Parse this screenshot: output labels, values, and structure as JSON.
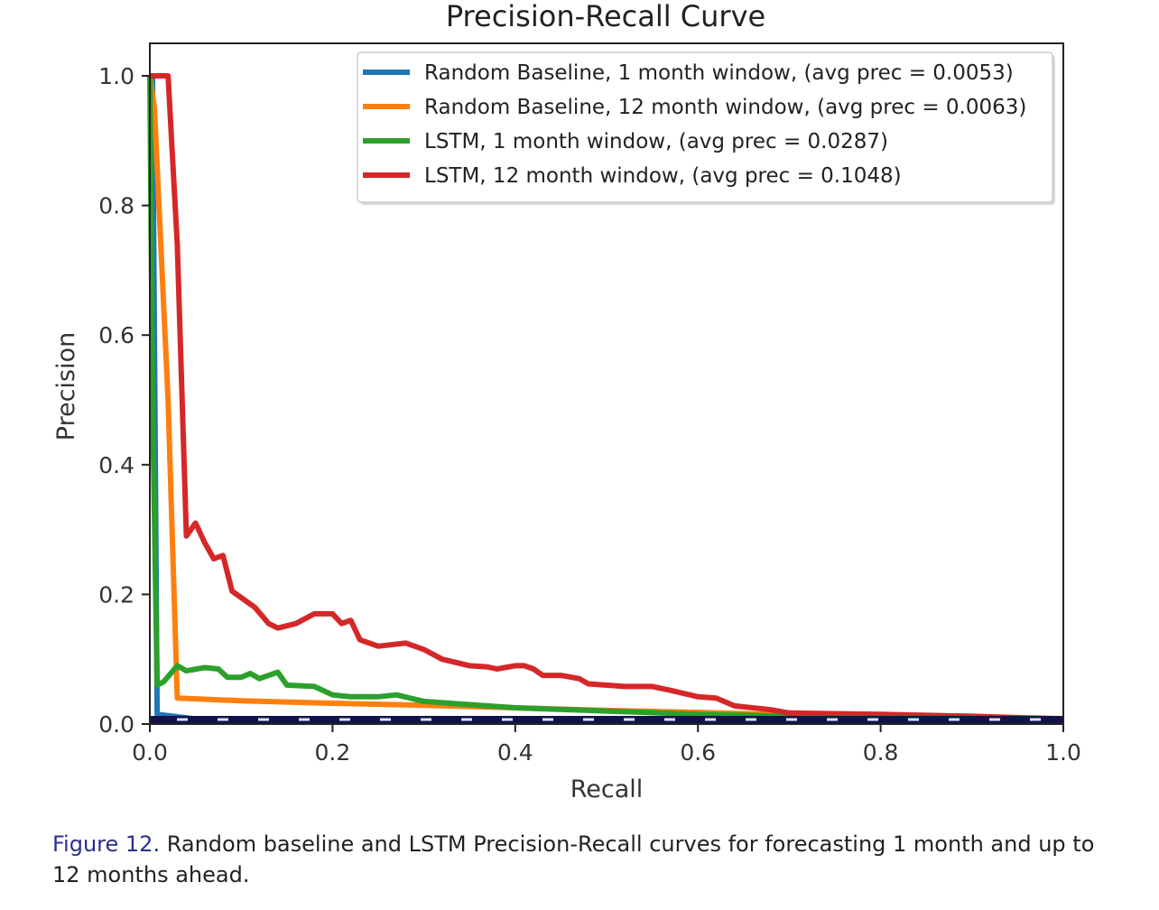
{
  "chart_data": {
    "type": "line",
    "title": "Precision-Recall Curve",
    "xlabel": "Recall",
    "ylabel": "Precision",
    "xlim": [
      0.0,
      1.0
    ],
    "ylim": [
      0.0,
      1.0
    ],
    "xticks": [
      "0.0",
      "0.2",
      "0.4",
      "0.6",
      "0.8",
      "1.0"
    ],
    "yticks": [
      "0.0",
      "0.2",
      "0.4",
      "0.6",
      "0.8",
      "1.0"
    ],
    "grid": false,
    "legend_position": "top-right",
    "baseline": {
      "style": "dashed",
      "y": 0.007
    },
    "series": [
      {
        "name": "Random Baseline, 1 month window, (avg prec = 0.0053)",
        "color": "#1f77b4",
        "points": [
          [
            0.0,
            1.0
          ],
          [
            0.003,
            1.0
          ],
          [
            0.008,
            0.015
          ],
          [
            0.05,
            0.008
          ],
          [
            1.0,
            0.005
          ]
        ]
      },
      {
        "name": "Random Baseline, 12 month window, (avg prec = 0.0063)",
        "color": "#ff7f0e",
        "points": [
          [
            0.0,
            1.0
          ],
          [
            0.005,
            0.95
          ],
          [
            0.02,
            0.5
          ],
          [
            0.03,
            0.04
          ],
          [
            0.1,
            0.036
          ],
          [
            0.2,
            0.032
          ],
          [
            0.3,
            0.029
          ],
          [
            0.4,
            0.025
          ],
          [
            0.5,
            0.021
          ],
          [
            0.6,
            0.018
          ],
          [
            0.7,
            0.014
          ],
          [
            0.8,
            0.011
          ],
          [
            0.9,
            0.009
          ],
          [
            1.0,
            0.007
          ]
        ]
      },
      {
        "name": "LSTM, 1 month window, (avg prec = 0.0287)",
        "color": "#2ca02c",
        "points": [
          [
            0.0,
            1.0
          ],
          [
            0.003,
            0.5
          ],
          [
            0.008,
            0.06
          ],
          [
            0.015,
            0.065
          ],
          [
            0.03,
            0.09
          ],
          [
            0.04,
            0.082
          ],
          [
            0.06,
            0.087
          ],
          [
            0.075,
            0.085
          ],
          [
            0.085,
            0.072
          ],
          [
            0.1,
            0.072
          ],
          [
            0.11,
            0.078
          ],
          [
            0.12,
            0.07
          ],
          [
            0.14,
            0.08
          ],
          [
            0.15,
            0.06
          ],
          [
            0.18,
            0.058
          ],
          [
            0.2,
            0.045
          ],
          [
            0.22,
            0.042
          ],
          [
            0.25,
            0.042
          ],
          [
            0.27,
            0.045
          ],
          [
            0.3,
            0.035
          ],
          [
            0.35,
            0.03
          ],
          [
            0.4,
            0.025
          ],
          [
            0.5,
            0.02
          ],
          [
            0.6,
            0.015
          ],
          [
            0.7,
            0.012
          ],
          [
            0.8,
            0.01
          ],
          [
            1.0,
            0.008
          ]
        ]
      },
      {
        "name": "LSTM, 12 month window, (avg prec = 0.1048)",
        "color": "#d62728",
        "points": [
          [
            0.0,
            1.0
          ],
          [
            0.02,
            1.0
          ],
          [
            0.03,
            0.74
          ],
          [
            0.04,
            0.29
          ],
          [
            0.05,
            0.31
          ],
          [
            0.06,
            0.28
          ],
          [
            0.07,
            0.255
          ],
          [
            0.08,
            0.26
          ],
          [
            0.09,
            0.205
          ],
          [
            0.1,
            0.195
          ],
          [
            0.115,
            0.18
          ],
          [
            0.13,
            0.155
          ],
          [
            0.14,
            0.148
          ],
          [
            0.16,
            0.155
          ],
          [
            0.18,
            0.17
          ],
          [
            0.2,
            0.17
          ],
          [
            0.21,
            0.155
          ],
          [
            0.22,
            0.16
          ],
          [
            0.23,
            0.13
          ],
          [
            0.25,
            0.12
          ],
          [
            0.28,
            0.125
          ],
          [
            0.3,
            0.115
          ],
          [
            0.32,
            0.1
          ],
          [
            0.35,
            0.09
          ],
          [
            0.37,
            0.088
          ],
          [
            0.38,
            0.085
          ],
          [
            0.4,
            0.09
          ],
          [
            0.41,
            0.09
          ],
          [
            0.42,
            0.085
          ],
          [
            0.43,
            0.075
          ],
          [
            0.45,
            0.075
          ],
          [
            0.47,
            0.07
          ],
          [
            0.48,
            0.062
          ],
          [
            0.52,
            0.058
          ],
          [
            0.55,
            0.058
          ],
          [
            0.57,
            0.052
          ],
          [
            0.6,
            0.042
          ],
          [
            0.62,
            0.04
          ],
          [
            0.64,
            0.028
          ],
          [
            0.68,
            0.022
          ],
          [
            0.7,
            0.017
          ],
          [
            0.8,
            0.015
          ],
          [
            0.9,
            0.012
          ],
          [
            1.0,
            0.008
          ]
        ]
      }
    ]
  },
  "caption": {
    "label": "Figure 12.",
    "text": " Random baseline and LSTM Precision-Recall curves for forecasting 1 month and up to 12 months ahead."
  }
}
